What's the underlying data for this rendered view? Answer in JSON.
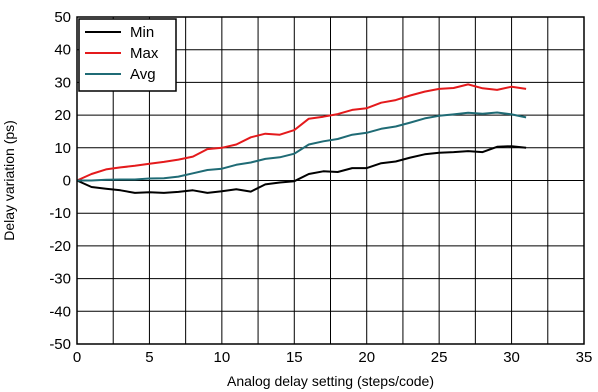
{
  "chart_data": {
    "type": "line",
    "title": "",
    "xlabel": "Analog delay setting (steps/code)",
    "ylabel": "Delay variation (ps)",
    "xlim": [
      0,
      35
    ],
    "ylim": [
      -50,
      50
    ],
    "xticks": [
      0,
      5,
      10,
      15,
      20,
      25,
      30,
      35
    ],
    "yticks": [
      -50,
      -40,
      -30,
      -20,
      -10,
      0,
      10,
      20,
      30,
      40,
      50
    ],
    "x_minor_step": 2.5,
    "y_minor_step": 10,
    "grid": true,
    "legend_position": "top-left",
    "x": [
      0,
      1,
      2,
      3,
      4,
      5,
      6,
      7,
      8,
      9,
      10,
      11,
      12,
      13,
      14,
      15,
      16,
      17,
      18,
      19,
      20,
      21,
      22,
      23,
      24,
      25,
      26,
      27,
      28,
      29,
      30,
      31
    ],
    "series": [
      {
        "name": "Min",
        "color": "#000000",
        "values": [
          0,
          -2,
          -2.5,
          -3,
          -3.8,
          -3.6,
          -3.8,
          -3.5,
          -3,
          -3.8,
          -3.3,
          -2.7,
          -3.4,
          -1.2,
          -0.6,
          -0.2,
          2,
          2.8,
          2.6,
          3.8,
          3.8,
          5.3,
          5.8,
          7,
          8,
          8.5,
          8.7,
          9,
          8.7,
          10.3,
          10.5,
          10
        ]
      },
      {
        "name": "Max",
        "color": "#e41a1c",
        "values": [
          0,
          2,
          3.4,
          4,
          4.5,
          5.1,
          5.7,
          6.4,
          7.3,
          9.6,
          10,
          11,
          13.2,
          14.3,
          14,
          15.4,
          18.9,
          19.5,
          20.3,
          21.6,
          22.1,
          23.8,
          24.6,
          26,
          27.2,
          28,
          28.3,
          29.4,
          28.2,
          27.7,
          28.7,
          28
        ]
      },
      {
        "name": "Avg",
        "color": "#1f6b75",
        "values": [
          0,
          0,
          0.2,
          0.3,
          0.3,
          0.6,
          0.7,
          1.2,
          2.2,
          3.2,
          3.6,
          4.8,
          5.5,
          6.6,
          7.1,
          8.2,
          11,
          12,
          12.7,
          14,
          14.6,
          15.8,
          16.5,
          17.7,
          19,
          19.8,
          20.2,
          20.7,
          20.4,
          20.8,
          20.2,
          19.3
        ]
      }
    ]
  }
}
